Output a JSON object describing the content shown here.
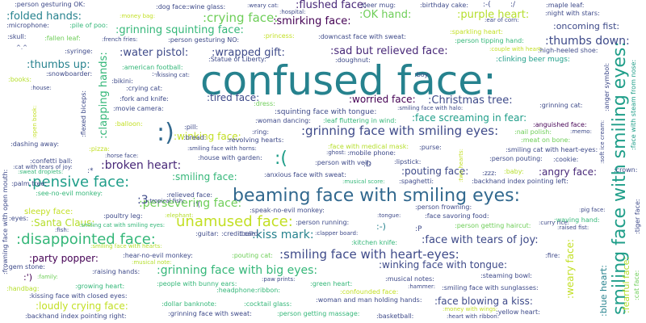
{
  "palette": {
    "teal": "#1f9e89",
    "blue": "#3e4a89",
    "lime": "#6ece58",
    "yellow": "#c2df23",
    "green": "#35b779",
    "purple": "#482878",
    "darkteal": "#26828e",
    "violet": "#440154",
    "cyan": "#31688e",
    "olive": "#b5de2b"
  },
  "words": [
    {
      "text": "confused face:",
      "color": "#26828e"
    },
    {
      "text": "beaming face with smiling eyes:",
      "color": "#31688e"
    },
    {
      "text": "smiling face with smiling eyes:",
      "color": "#1f9e89"
    },
    {
      "text": ":)",
      "color": "#31688e"
    },
    {
      "text": ":pensive face:",
      "color": "#1f9e89"
    },
    {
      "text": ":disappointed face:",
      "color": "#35b779"
    },
    {
      "text": "unamused face:",
      "color": "#c2df23"
    },
    {
      "text": ":grinning face with smiling eyes:",
      "color": "#3e4a89"
    },
    {
      "text": ":smiling face with heart-eyes:",
      "color": "#3e4a89"
    },
    {
      "text": ":grinning face with big eyes:",
      "color": "#35b779"
    },
    {
      "text": ":broken heart:",
      "color": "#482878"
    },
    {
      "text": ":(",
      "color": "#1f9e89"
    },
    {
      "text": ":kiss mark:",
      "color": "#26828e"
    },
    {
      "text": ":persevering face:",
      "color": "#6ece58"
    },
    {
      "text": ":party popper:",
      "color": "#440154"
    },
    {
      "text": ":face with tears of joy:",
      "color": "#3e4a89"
    },
    {
      "text": ":crying face:",
      "color": "#6ece58"
    },
    {
      "text": ":grinning squinting face:",
      "color": "#35b779"
    },
    {
      "text": ":smirking face:",
      "color": "#440154"
    },
    {
      "text": ":flushed face:",
      "color": "#482878"
    },
    {
      "text": ":OK hand:",
      "color": "#6ece58"
    },
    {
      "text": ":purple heart:",
      "color": "#b5de2b"
    },
    {
      "text": ":folded hands:",
      "color": "#26828e"
    },
    {
      "text": ":thumbs up:",
      "color": "#26828e"
    },
    {
      "text": ":water pistol:",
      "color": "#3e4a89"
    },
    {
      "text": ":wrapped gift:",
      "color": "#3e4a89"
    },
    {
      "text": ":sad but relieved face:",
      "color": "#482878"
    },
    {
      "text": ":thumbs down:",
      "color": "#3e4a89"
    },
    {
      "text": ":tired face:",
      "color": "#3e4a89"
    },
    {
      "text": ":worried face:",
      "color": "#440154"
    },
    {
      "text": ":Christmas tree:",
      "color": "#3e4a89"
    },
    {
      "text": ":face screaming in fear:",
      "color": "#1f9e89"
    },
    {
      "text": ":winking face:",
      "color": "#c2df23"
    },
    {
      "text": ":smiling face:",
      "color": "#35b779"
    },
    {
      "text": ":pouting face:",
      "color": "#3e4a89"
    },
    {
      "text": ":angry face:",
      "color": "#482878"
    },
    {
      "text": ":Santa Claus:",
      "color": "#b5de2b"
    },
    {
      "text": ":loudly crying face:",
      "color": "#c2df23"
    },
    {
      "text": ":winking face with tongue:",
      "color": "#3e4a89"
    },
    {
      "text": ":face blowing a kiss:",
      "color": "#3e4a89"
    },
    {
      "text": ":clapping hands:",
      "color": "#35b779"
    },
    {
      "text": ":weary face:",
      "color": "#c2df23"
    },
    {
      "text": ":fearful face:",
      "color": "#b5de2b"
    },
    {
      "text": ":blue heart:",
      "color": "#26828e"
    },
    {
      "text": ":oncoming fist:",
      "color": "#3e4a89"
    },
    {
      "text": "sleepy face:",
      "color": "#c2df23"
    },
    {
      "text": ":3",
      "color": "#3e4a89"
    },
    {
      "text": ":-)",
      "color": "#26828e"
    },
    {
      "text": ":')",
      "color": "#440154"
    },
    {
      "text": ":person gesturing OK:",
      "color": "#3e4a89"
    },
    {
      "text": ":dog face:",
      "color": "#3e4a89"
    },
    {
      "text": ":wine glass:",
      "color": "#3e4a89"
    },
    {
      "text": ":beer mug:",
      "color": "#3e4a89"
    },
    {
      "text": ":birthday cake:",
      "color": "#3e4a89"
    },
    {
      "text": ":maple leaf:",
      "color": "#3e4a89"
    },
    {
      "text": ":night with stars:",
      "color": "#3e4a89"
    },
    {
      "text": ":microphone:",
      "color": "#3e4a89"
    },
    {
      "text": ":pile of poo:",
      "color": "#35b779"
    },
    {
      "text": ":skull:",
      "color": "#3e4a89"
    },
    {
      "text": ":fallen leaf:",
      "color": "#6ece58"
    },
    {
      "text": ":person gesturing NO:",
      "color": "#3e4a89"
    },
    {
      "text": ":princess:",
      "color": "#c2df23"
    },
    {
      "text": ":downcast face with sweat:",
      "color": "#3e4a89"
    },
    {
      "text": ":sparkling heart:",
      "color": "#c2df23"
    },
    {
      "text": ":person tipping hand:",
      "color": "#35b779"
    },
    {
      "text": ":syringe:",
      "color": "#3e4a89"
    },
    {
      "text": ":Statue of Liberty:",
      "color": "#3e4a89"
    },
    {
      "text": ":doughnut:",
      "color": "#3e4a89"
    },
    {
      "text": ":high-heeled shoe:",
      "color": "#3e4a89"
    },
    {
      "text": ":clinking beer mugs:",
      "color": "#1f9e89"
    },
    {
      "text": ":american football:",
      "color": "#35b779"
    },
    {
      "text": ":snowboarder:",
      "color": "#3e4a89"
    },
    {
      "text": ":kissing cat:",
      "color": "#3e4a89"
    },
    {
      "text": ":books:",
      "color": "#b5de2b"
    },
    {
      "text": ":bikini:",
      "color": "#3e4a89"
    },
    {
      "text": ":boy:",
      "color": "#3e4a89"
    },
    {
      "text": ":house:",
      "color": "#3e4a89"
    },
    {
      "text": ":crying cat:",
      "color": "#3e4a89"
    },
    {
      "text": ":fork and knife:",
      "color": "#3e4a89"
    },
    {
      "text": ":dress:",
      "color": "#6ece58"
    },
    {
      "text": ":grinning cat:",
      "color": "#3e4a89"
    },
    {
      "text": ":movie camera:",
      "color": "#3e4a89"
    },
    {
      "text": ":squinting face with tongue:",
      "color": "#3e4a89"
    },
    {
      "text": ":smiling face with halo:",
      "color": "#3e4a89"
    },
    {
      "text": ":woman dancing:",
      "color": "#3e4a89"
    },
    {
      "text": ":leaf fluttering in wind:",
      "color": "#35b779"
    },
    {
      "text": ":balloon:",
      "color": "#c2df23"
    },
    {
      "text": ":pill:",
      "color": "#3e4a89"
    },
    {
      "text": ":ring:",
      "color": "#3e4a89"
    },
    {
      "text": ":anguished face:",
      "color": "#440154"
    },
    {
      "text": ":bread:",
      "color": "#3e4a89"
    },
    {
      "text": ":revolving hearts:",
      "color": "#3e4a89"
    },
    {
      "text": ":nail polish:",
      "color": "#6ece58"
    },
    {
      "text": ":meat on bone:",
      "color": "#6ece58"
    },
    {
      "text": ":memo:",
      "color": "#3e4a89"
    },
    {
      "text": ":smiling face with horns:",
      "color": "#3e4a89"
    },
    {
      "text": ":face with medical mask:",
      "color": "#b5de2b"
    },
    {
      "text": ":dashing away:",
      "color": "#3e4a89"
    },
    {
      "text": ":pizza:",
      "color": "#c2df23"
    },
    {
      "text": ":purse:",
      "color": "#3e4a89"
    },
    {
      "text": ":smiling cat with heart-eyes:",
      "color": "#3e4a89"
    },
    {
      "text": ":house with garden:",
      "color": "#3e4a89"
    },
    {
      "text": ":person pouting:",
      "color": "#3e4a89"
    },
    {
      "text": ":cookie:",
      "color": "#3e4a89"
    },
    {
      "text": ":confetti ball:",
      "color": "#3e4a89"
    },
    {
      "text": ":cat with tears of joy:",
      "color": "#3e4a89"
    },
    {
      "text": ":person with veil:",
      "color": "#3e4a89"
    },
    {
      "text": ":sweat droplets:",
      "color": "#35b779"
    },
    {
      "text": ":lipstick:",
      "color": "#3e4a89"
    },
    {
      "text": ":anxious face with sweat:",
      "color": "#3e4a89"
    },
    {
      "text": ":zzz:",
      "color": "#3e4a89"
    },
    {
      "text": ":baby:",
      "color": "#b5de2b"
    },
    {
      "text": ":backhand index pointing left:",
      "color": "#3e4a89"
    },
    {
      "text": ":crown:",
      "color": "#3e4a89"
    },
    {
      "text": ":spaghetti:",
      "color": "#3e4a89"
    },
    {
      "text": ":palm tree:",
      "color": "#3e4a89"
    },
    {
      "text": ":see-no-evil monkey:",
      "color": "#35b779"
    },
    {
      "text": ":relieved face:",
      "color": "#3e4a89"
    },
    {
      "text": ":tropical fish:",
      "color": "#3e4a89"
    },
    {
      "text": ":speak-no-evil monkey:",
      "color": "#3e4a89"
    },
    {
      "text": ":person frowning:",
      "color": "#3e4a89"
    },
    {
      "text": ":pig face:",
      "color": "#3e4a89"
    },
    {
      "text": ":eyes:",
      "color": "#3e4a89"
    },
    {
      "text": ":poultry leg:",
      "color": "#3e4a89"
    },
    {
      "text": ":elephant:",
      "color": "#b5de2b"
    },
    {
      "text": ":tongue:",
      "color": "#3e4a89"
    },
    {
      "text": ":face savoring food:",
      "color": "#3e4a89"
    },
    {
      "text": ":waving hand:",
      "color": "#35b779"
    },
    {
      "text": ":person running:",
      "color": "#3e4a89"
    },
    {
      "text": ":person getting haircut:",
      "color": "#6ece58"
    },
    {
      "text": ":curry rice:",
      "color": "#3e4a89"
    },
    {
      "text": ":raised fist:",
      "color": "#3e4a89"
    },
    {
      "text": ":smiling cat with smiling eyes:",
      "color": "#35b779"
    },
    {
      "text": ":credit card:",
      "color": "#3e4a89"
    },
    {
      "text": ":clapper board:",
      "color": "#3e4a89"
    },
    {
      "text": ":kitchen knife:",
      "color": "#35b779"
    },
    {
      "text": ":hear-no-evil monkey:",
      "color": "#3e4a89"
    },
    {
      "text": ":musical note:",
      "color": "#b5de2b"
    },
    {
      "text": ":pouting cat:",
      "color": "#6ece58"
    },
    {
      "text": ":fire:",
      "color": "#3e4a89"
    },
    {
      "text": ":gem stone:",
      "color": "#3e4a89"
    },
    {
      "text": ":raising hands:",
      "color": "#3e4a89"
    },
    {
      "text": ":family:",
      "color": "#6ece58"
    },
    {
      "text": ":musical notes:",
      "color": "#3e4a89"
    },
    {
      "text": ":steaming bowl:",
      "color": "#3e4a89"
    },
    {
      "text": ":handbag:",
      "color": "#b5de2b"
    },
    {
      "text": ":growing heart:",
      "color": "#35b779"
    },
    {
      "text": ":people with bunny ears:",
      "color": "#35b779"
    },
    {
      "text": ":paw prints:",
      "color": "#3e4a89"
    },
    {
      "text": ":green heart:",
      "color": "#35b779"
    },
    {
      "text": ":hammer:",
      "color": "#3e4a89"
    },
    {
      "text": ":smiling face with sunglasses:",
      "color": "#3e4a89"
    },
    {
      "text": ":kissing face with closed eyes:",
      "color": "#3e4a89"
    },
    {
      "text": ":headphone:",
      "color": "#35b779"
    },
    {
      "text": ":ribbon:",
      "color": "#35b779"
    },
    {
      "text": ":confounded face:",
      "color": "#c2df23"
    },
    {
      "text": ":dollar banknote:",
      "color": "#35b779"
    },
    {
      "text": ":cocktail glass:",
      "color": "#35b779"
    },
    {
      "text": ":woman and man holding hands:",
      "color": "#3e4a89"
    },
    {
      "text": ":money with wings:",
      "color": "#c2df23"
    },
    {
      "text": ":backhand index pointing right:",
      "color": "#3e4a89"
    },
    {
      "text": ":grinning face with sweat:",
      "color": "#3e4a89"
    },
    {
      "text": ":person getting massage:",
      "color": "#35b779"
    },
    {
      "text": ":basketball:",
      "color": "#3e4a89"
    },
    {
      "text": ":heart with ribbon:",
      "color": "#3e4a89"
    },
    {
      "text": ":yellow heart:",
      "color": "#3e4a89"
    },
    {
      "text": ":flexed biceps:",
      "color": "#3e4a89"
    },
    {
      "text": ":open book:",
      "color": "#c2df23"
    },
    {
      "text": ":frowning face with open mouth:",
      "color": "#3e4a89"
    },
    {
      "text": ":anger symbol:",
      "color": "#3e4a89"
    },
    {
      "text": ":soft ice cream:",
      "color": "#3e4a89"
    },
    {
      "text": ":face with steam from nose:",
      "color": "#1f9e89"
    },
    {
      "text": ":tiger face:",
      "color": "#3e4a89"
    },
    {
      "text": ":cat face:",
      "color": "#6ece58"
    },
    {
      "text": ":two hearts:",
      "color": "#c2df23"
    },
    {
      "text": ":'(",
      "color": "#3e4a89"
    },
    {
      "text": ":-(",
      "color": "#3e4a89"
    },
    {
      "text": ":*",
      "color": "#3e4a89"
    },
    {
      "text": "^.^",
      "color": "#3e4a89"
    },
    {
      "text": ":-/",
      "color": "#3e4a89"
    },
    {
      "text": ":money bag:",
      "color": "#c2df23"
    },
    {
      "text": ":weary cat:",
      "color": "#3e4a89"
    },
    {
      "text": ":hospital:",
      "color": "#3e4a89"
    },
    {
      "text": ":ear of corn:",
      "color": "#3e4a89"
    },
    {
      "text": ":french fries:",
      "color": "#3e4a89"
    },
    {
      "text": ":couple with heart:",
      "color": "#c2df23"
    },
    {
      "text": ":guitar:",
      "color": "#3e4a89"
    },
    {
      "text": ":bell:",
      "color": "#3e4a89"
    },
    {
      "text": ":mobile phone:",
      "color": "#3e4a89"
    },
    {
      "text": ":ghost:",
      "color": "#3e4a89"
    },
    {
      "text": ":horse face:",
      "color": "#3e4a89"
    },
    {
      "text": ":fish:",
      "color": "#3e4a89"
    },
    {
      "text": ":musical score:",
      "color": "#35b779"
    },
    {
      "text": ":smiling face with hearts:",
      "color": "#b5de2b"
    },
    {
      "text": ":P",
      "color": "#3e4a89"
    },
    {
      "text": ":/",
      "color": "#3e4a89"
    },
    {
      "text": ":D",
      "color": "#3e4a89"
    }
  ]
}
